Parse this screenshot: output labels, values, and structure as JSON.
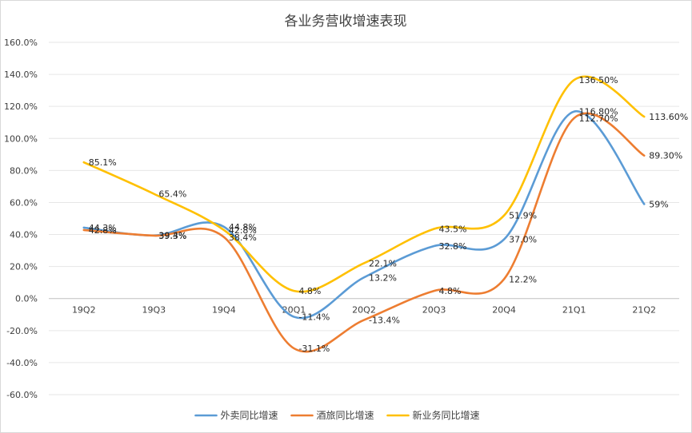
{
  "chart_data": {
    "type": "line",
    "title": "各业务营收增速表现",
    "xlabel": "",
    "ylabel": "",
    "categories": [
      "19Q2",
      "19Q3",
      "19Q4",
      "20Q1",
      "20Q2",
      "20Q3",
      "20Q4",
      "21Q1",
      "21Q2"
    ],
    "ylim": [
      -60,
      160
    ],
    "ytick_labels": [
      "160.0%",
      "140.0%",
      "120.0%",
      "100.0%",
      "80.0%",
      "60.0%",
      "40.0%",
      "20.0%",
      "0.0%",
      "-20.0%",
      "-40.0%",
      "-60.0%"
    ],
    "grid": true,
    "legend_position": "bottom",
    "series": [
      {
        "name": "外卖同比增速",
        "color": "#5b9bd5",
        "values": [
          44.3,
          39.4,
          44.8,
          -11.4,
          13.2,
          32.8,
          37.0,
          116.8,
          59.0
        ],
        "labels": [
          "44.3%",
          "39.4%",
          "44.8%",
          "-11.4%",
          "13.2%",
          "32.8%",
          "37.0%",
          "116.80%",
          "59%"
        ]
      },
      {
        "name": "酒旅同比增速",
        "color": "#ed7d31",
        "values": [
          42.8,
          39.3,
          38.4,
          -31.1,
          -13.4,
          4.8,
          12.2,
          112.7,
          89.3
        ],
        "labels": [
          "42.8%",
          "39.3%",
          "38.4%",
          "-31.1%",
          "-13.4%",
          "4.8%",
          "12.2%",
          "112.70%",
          "89.30%"
        ]
      },
      {
        "name": "新业务同比增速",
        "color": "#ffc000",
        "values": [
          85.1,
          65.4,
          42.8,
          4.8,
          22.1,
          43.5,
          51.9,
          136.5,
          113.6
        ],
        "labels": [
          "85.1%",
          "65.4%",
          "42.8%",
          "4.8%",
          "22.1%",
          "43.5%",
          "51.9%",
          "136.50%",
          "113.60%"
        ]
      }
    ]
  }
}
